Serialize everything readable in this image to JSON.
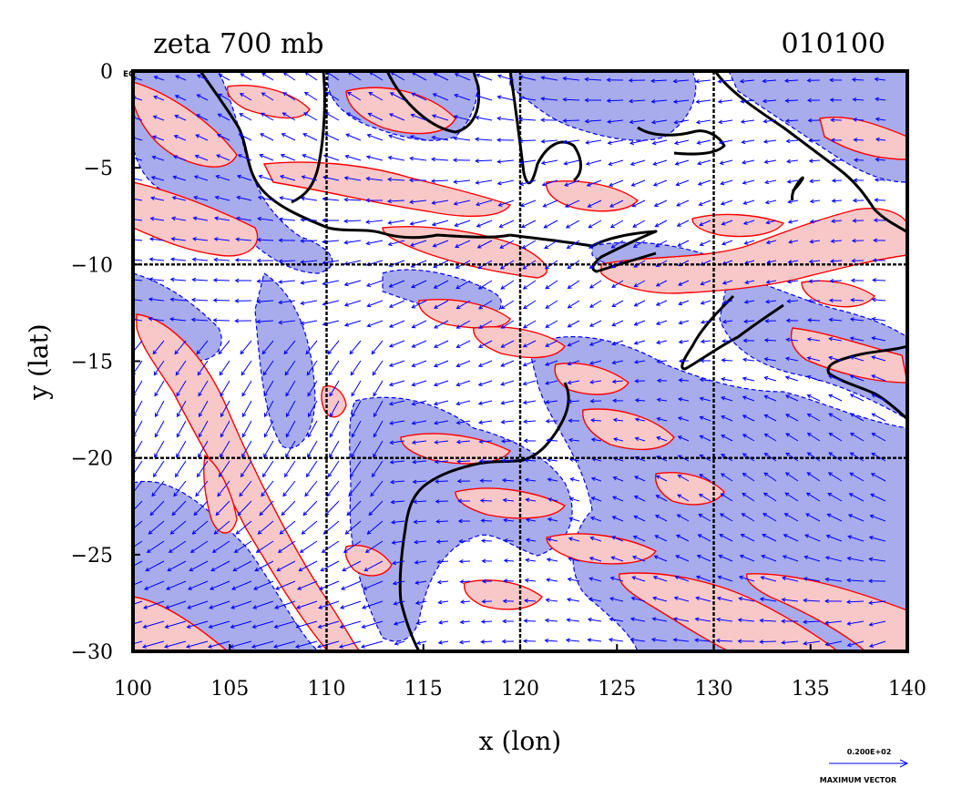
{
  "chart_data": {
    "type": "contour",
    "title_left": "zeta 700 mb",
    "title_right": "010100",
    "xlabel": "x (lon)",
    "ylabel": "y (lat)",
    "xlim": [
      100,
      140
    ],
    "ylim": [
      -30,
      0
    ],
    "xticks": [
      100,
      105,
      110,
      115,
      120,
      125,
      130,
      135,
      140
    ],
    "yticks": [
      0,
      -5,
      -10,
      -15,
      -20,
      -25,
      -30
    ],
    "gridlines_x": [
      110,
      120,
      130
    ],
    "gridlines_y": [
      -10,
      -20
    ],
    "corner_label": "EQ",
    "vector_legend": {
      "value_label": "0.200E+02",
      "caption": "MAXIMUM VECTOR"
    },
    "colors": {
      "positive_fill": "#f8c8c8",
      "positive_line": "#ff0000",
      "negative_fill": "#a8acec",
      "negative_line": "#0000ee",
      "coast": "#000000",
      "vector": "#0000ff"
    }
  }
}
